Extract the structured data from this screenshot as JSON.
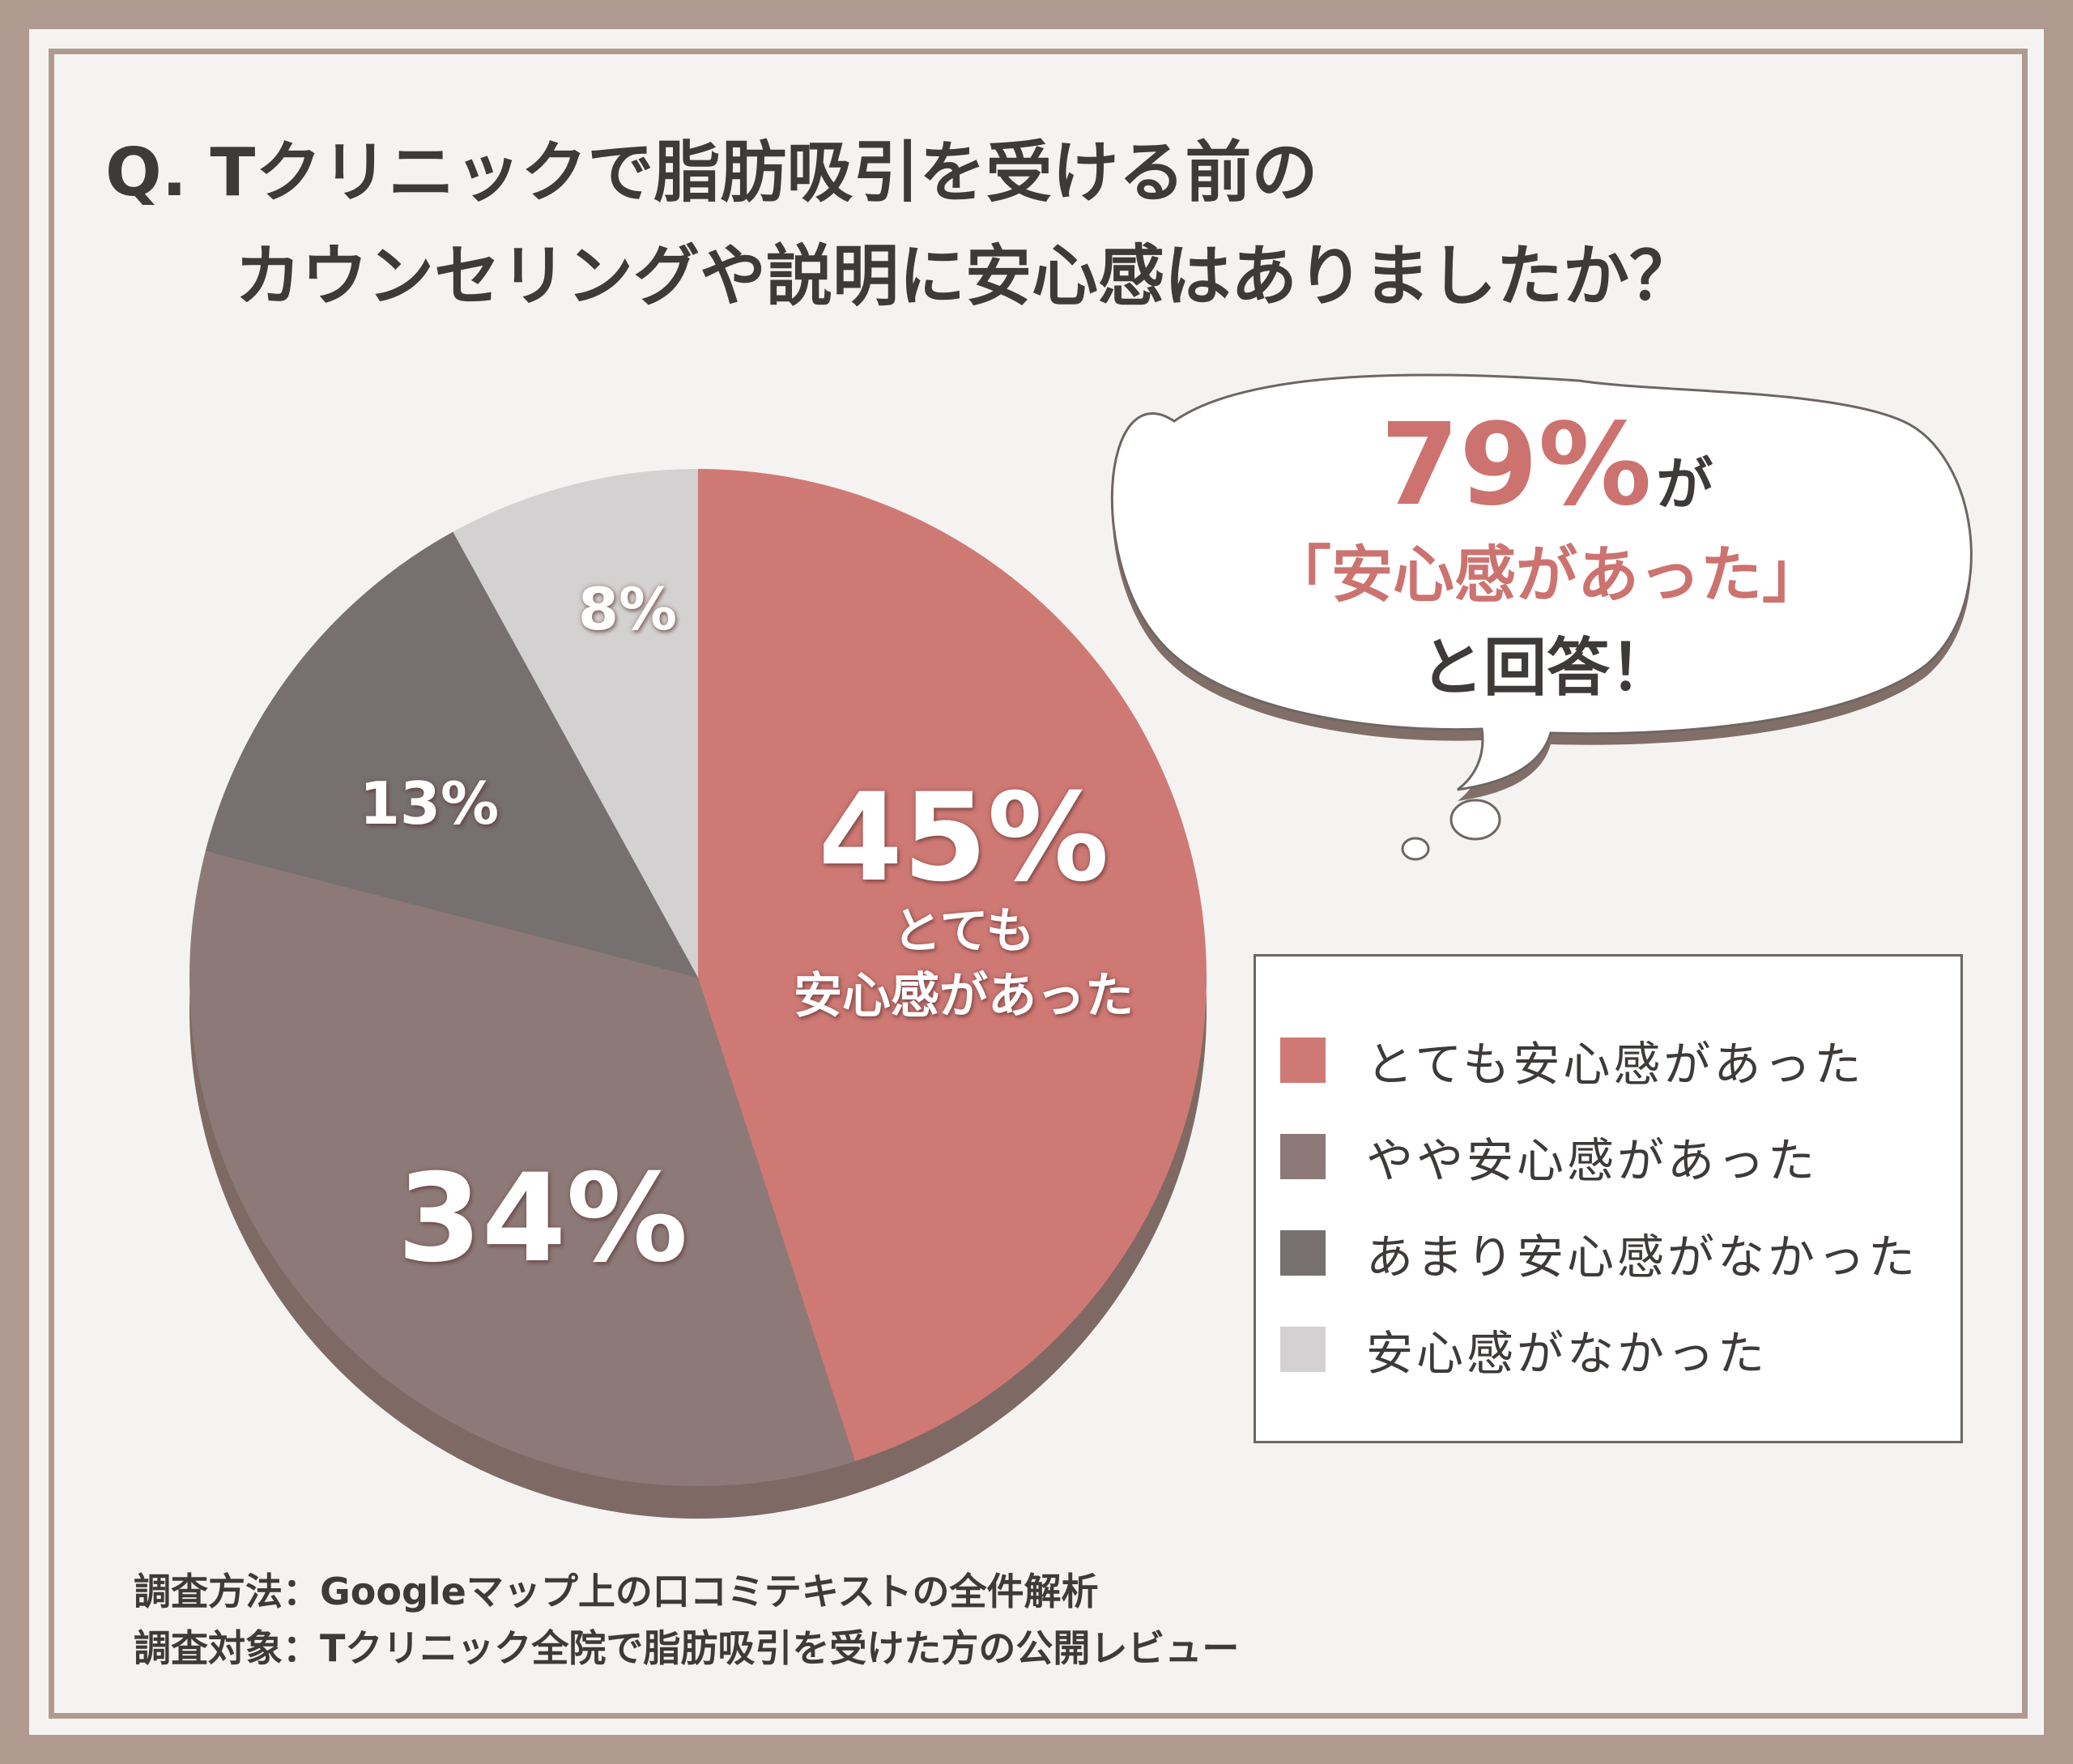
{
  "title": {
    "line1": "Q. Tクリニックで脂肪吸引を受ける前の",
    "line2": "カウンセリングや説明に安心感はありましたか？"
  },
  "callout": {
    "value": "79%",
    "particle": "が",
    "quote": "「安心感があった」",
    "tail": "と回答！"
  },
  "chart_data": {
    "type": "pie",
    "categories": [
      "とても安心感があった",
      "やや安心感があった",
      "あまり安心感がなかった",
      "安心感がなかった"
    ],
    "values": [
      45,
      34,
      13,
      8
    ],
    "colors": [
      "#cf7975",
      "#8d7a78",
      "#767070",
      "#d3d1d1"
    ],
    "labels": {
      "slice0_pct": "45%",
      "slice0_sub1": "とても",
      "slice0_sub2": "安心感があった",
      "slice1_pct": "34%",
      "slice2_pct": "13%",
      "slice3_pct": "8%"
    },
    "legend": "right"
  },
  "footer": {
    "method": "調査方法：Googleマップ上の口コミテキストの全件解析",
    "target": "調査対象：Tクリニック全院で脂肪吸引を受けた方の公開レビュー"
  }
}
